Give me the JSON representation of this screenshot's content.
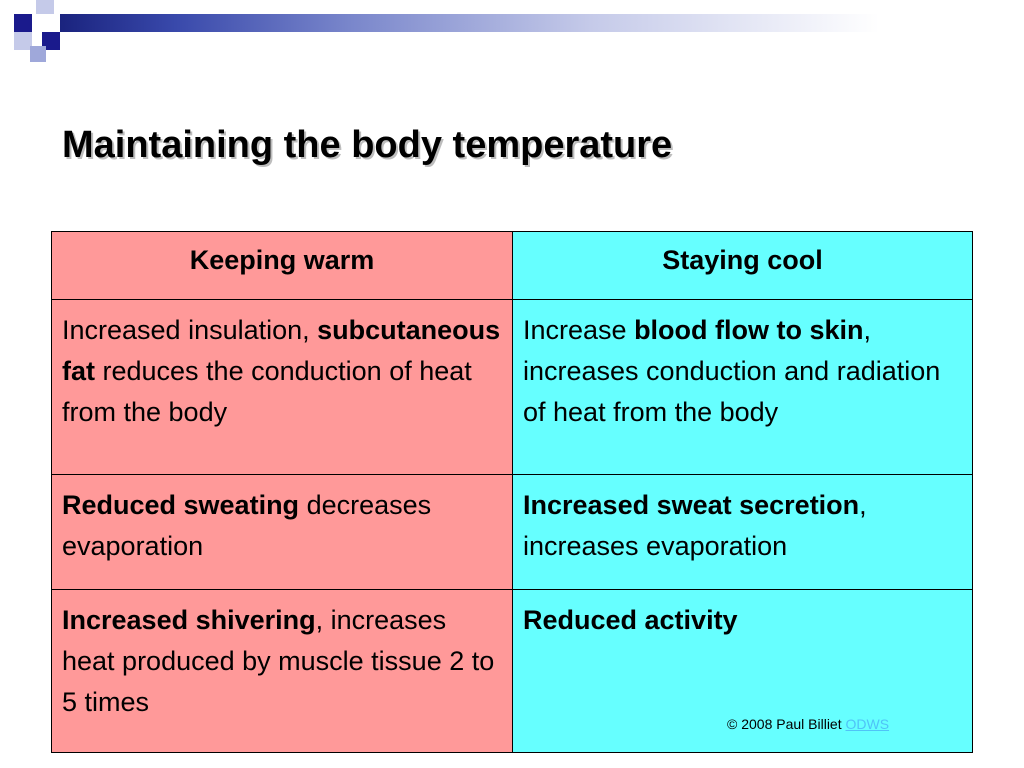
{
  "slide": {
    "title": "Maintaining the body temperature"
  },
  "table": {
    "headers": [
      "Keeping warm",
      "Staying cool"
    ],
    "rows": [
      {
        "warm": {
          "pre": "Increased insulation, ",
          "bold": "subcutaneous fat",
          "post": " reduces the conduction of heat from the body"
        },
        "cool": {
          "pre": "Increase ",
          "bold": "blood flow to skin",
          "post": ", increases conduction and radiation of heat from the body"
        }
      },
      {
        "warm": {
          "pre": "",
          "bold": "Reduced sweating",
          "post": " decreases evaporation"
        },
        "cool": {
          "pre": "",
          "bold": "Increased sweat secretion",
          "post": ", increases evaporation"
        }
      },
      {
        "warm": {
          "pre": "",
          "bold": "Increased shivering",
          "post": ", increases heat produced by muscle tissue 2 to 5 times"
        },
        "cool": {
          "pre": "",
          "bold": "Reduced activity",
          "post": ""
        }
      }
    ]
  },
  "footer": {
    "copyright": "© 2008 Paul Billiet ",
    "link": "ODWS"
  },
  "colors": {
    "warm_bg": "#ff9999",
    "cool_bg": "#66ffff",
    "header_accent": "#1a237e"
  }
}
